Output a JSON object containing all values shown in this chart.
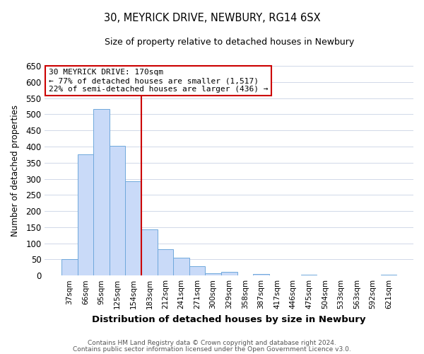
{
  "title": "30, MEYRICK DRIVE, NEWBURY, RG14 6SX",
  "subtitle": "Size of property relative to detached houses in Newbury",
  "xlabel": "Distribution of detached houses by size in Newbury",
  "ylabel": "Number of detached properties",
  "bar_labels": [
    "37sqm",
    "66sqm",
    "95sqm",
    "125sqm",
    "154sqm",
    "183sqm",
    "212sqm",
    "241sqm",
    "271sqm",
    "300sqm",
    "329sqm",
    "358sqm",
    "387sqm",
    "417sqm",
    "446sqm",
    "475sqm",
    "504sqm",
    "533sqm",
    "563sqm",
    "592sqm",
    "621sqm"
  ],
  "bar_values": [
    50,
    375,
    517,
    402,
    292,
    143,
    82,
    55,
    29,
    7,
    11,
    0,
    5,
    0,
    0,
    3,
    0,
    0,
    0,
    0,
    2
  ],
  "bar_color": "#c9daf8",
  "bar_edge_color": "#6fa8dc",
  "vline_x": 4.5,
  "vline_color": "#cc0000",
  "annotation_title": "30 MEYRICK DRIVE: 170sqm",
  "annotation_line1": "← 77% of detached houses are smaller (1,517)",
  "annotation_line2": "22% of semi-detached houses are larger (436) →",
  "annotation_box_color": "#ffffff",
  "annotation_box_edge_color": "#cc0000",
  "ylim": [
    0,
    650
  ],
  "yticks": [
    0,
    50,
    100,
    150,
    200,
    250,
    300,
    350,
    400,
    450,
    500,
    550,
    600,
    650
  ],
  "bg_color": "#ffffff",
  "grid_color": "#d0d8e8",
  "footer_line1": "Contains HM Land Registry data © Crown copyright and database right 2024.",
  "footer_line2": "Contains public sector information licensed under the Open Government Licence v3.0."
}
